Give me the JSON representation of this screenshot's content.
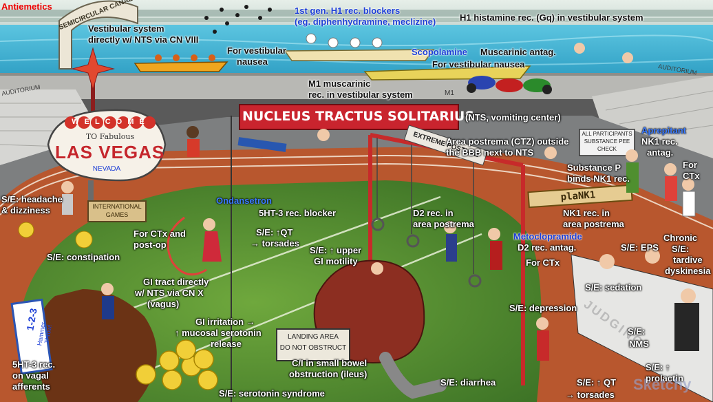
{
  "title": "Antiemetics",
  "watermark": "Sketchy",
  "scene_signs": {
    "canal": "SEMICIRCULAR CANAL",
    "auditorium": "AUDITORIUM",
    "welcome": "WELCOME",
    "to_fabulous": "TO Fabulous",
    "las_vegas": "LAS VEGAS",
    "nevada": "NEVADA",
    "intl_games_1": "INTERNATIONAL",
    "intl_games_2": "GAMES",
    "nts_banner": "NUCLEUS TRACTUS SOLITARIUS",
    "extreme_posture": "EXTREME POSTURE",
    "plank": "plaNK1",
    "pee_check_1": "ALL PARTICIPANTS",
    "pee_check_2": "SUBSTANCE PEE",
    "pee_check_3": "CHECK",
    "landing_1": "LANDING AREA",
    "landing_2": "DO NOT OBSTRUCT",
    "hammer_1": "1-2-3",
    "hammer_2": "Hammer",
    "hammer_3": "Throw!",
    "judging": "JUDGING",
    "boat_number": "M1"
  },
  "labels": {
    "vestibular_1": "Vestibular  system",
    "vestibular_2": "directly w/ NTS via CN VIII",
    "for_vest_1": "For vestibular",
    "for_vest_2": "nausea",
    "h1_blockers_1": "1st gen. H1 rec. blockers",
    "h1_blockers_2": "(eg. diphenhydramine, meclizine)",
    "h1_rec": "H1 histamine rec. (Gq) in vestibular system",
    "scopolamine": "Scopolamine",
    "muscarinic": "Muscarinic antag.",
    "for_vest_nausea": "For vestibular nausea",
    "m1_1": "M1 muscarinic",
    "m1_2": "rec. in vestibular system",
    "nts_note": "(NTS, vomiting center)",
    "ctz_1": "Area postrema (CTZ) outside",
    "ctz_2": "the BBB next to NTS",
    "aprepitant": "Aprepitant",
    "nk1_antag_1": "NK1 rec.",
    "nk1_antag_2": "antag.",
    "for_ctx_r_1": "For",
    "for_ctx_r_2": "CTx",
    "subst_p_1": "Substance P",
    "subst_p_2": "binds NK1 rec.",
    "nk1_ap_1": "NK1 rec. in",
    "nk1_ap_2": "area postrema",
    "se_headache_1": "S/E: headache",
    "se_headache_2": "& dizziness",
    "se_constipation": "S/E: constipation",
    "ondansetron": "Ondansetron",
    "ht3_blocker": "5HT-3 rec. blocker",
    "ctx_postop_1": "For CTx and",
    "ctx_postop_2": "post-op",
    "se_qt_1": "S/E: ↑QT",
    "se_qt_2": "→ torsades",
    "d2_ap_1": "D2 rec. in",
    "d2_ap_2": "area postrema",
    "metoclopramide": "Metoclopramide",
    "d2_antag": "D2 rec. antag.",
    "for_ctx_m": "For CTx",
    "se_upper_gi_1": "S/E: ↑ upper",
    "se_upper_gi_2": "GI motility",
    "se_eps": "S/E: EPS",
    "chronic_1": "Chronic",
    "chronic_2": "S/E:",
    "chronic_3": "tardive",
    "chronic_4": "dyskinesia",
    "gi_tract_1": "GI tract directly",
    "gi_tract_2": "w/ NTS via CN X",
    "gi_tract_3": "(vagus)",
    "se_sedation": "S/E: sedation",
    "se_depression": "S/E: depression",
    "gi_irritation_1": "GI irritation →",
    "gi_irritation_2": "↑ mucosal serotonin",
    "gi_irritation_3": "release",
    "se_nms": "S/E:",
    "se_nms_2": "NMS",
    "ht3_vagal_1": "5HT-3 rec.",
    "ht3_vagal_2": "on vagal",
    "ht3_vagal_3": "afferents",
    "ci_1": "C/I in small bowel",
    "ci_2": "obstruction (ileus)",
    "se_prolactin_1": "S/E: ↑",
    "se_prolactin_2": "prolactin",
    "se_diarrhea": "S/E: diarrhea",
    "se_qt2_1": "S/E: ↑ QT",
    "se_qt2_2": "→ torsades",
    "se_serotonin": "S/E: serotonin syndrome"
  },
  "colors": {
    "title_red": "#e00000",
    "drug_blue": "#1d3fd6",
    "grass": "#4f8a2f",
    "track": "#b5542f",
    "water": "#3fb6d8"
  }
}
